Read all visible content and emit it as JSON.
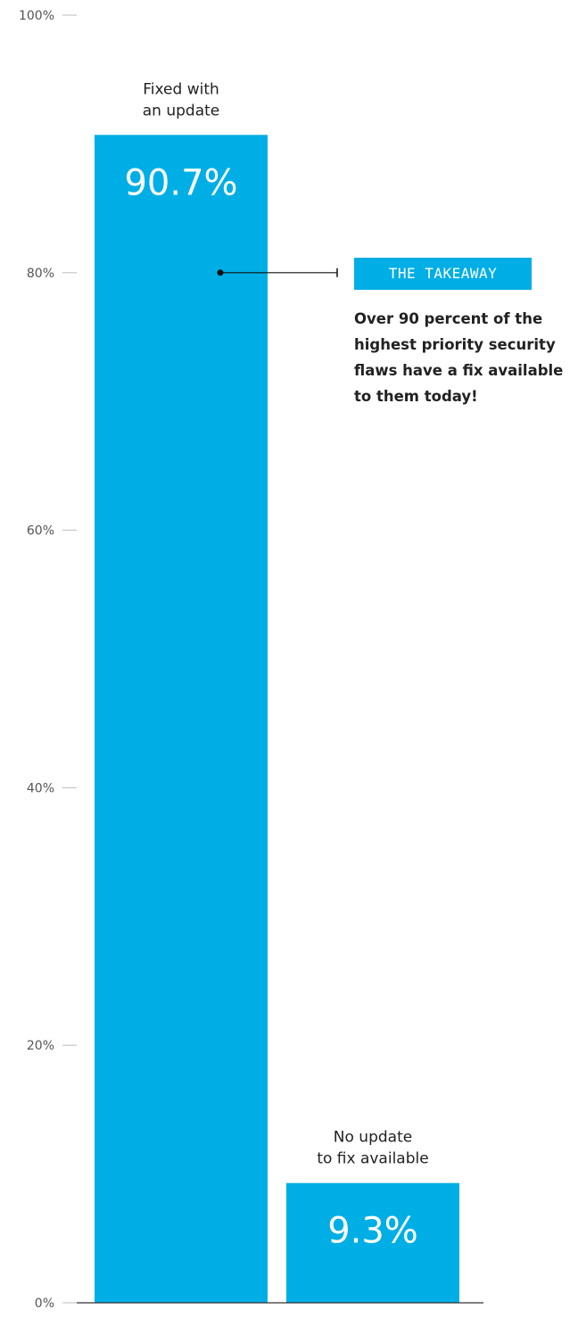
{
  "chart_data": {
    "type": "bar",
    "categories": [
      "Fixed with an update",
      "No update to fix available"
    ],
    "category_lines": [
      [
        "Fixed with",
        "an update"
      ],
      [
        "No update",
        "to fix available"
      ]
    ],
    "values": [
      90.7,
      9.3
    ],
    "value_labels": [
      "90.7%",
      "9.3%"
    ],
    "ylim": [
      0,
      100
    ],
    "yticks": [
      0,
      20,
      40,
      60,
      80,
      100
    ],
    "ytick_labels": [
      "0%",
      "20%",
      "40%",
      "60%",
      "80%",
      "100%"
    ],
    "bar_color": "#00aee6",
    "grid": false,
    "annotation": {
      "title": "THE TAKEAWAY",
      "text": "Over 90 percent of the highest priority security flaws have a fix available to them today!",
      "attached_to_category": "Fixed with an update",
      "at_value": 80
    }
  }
}
